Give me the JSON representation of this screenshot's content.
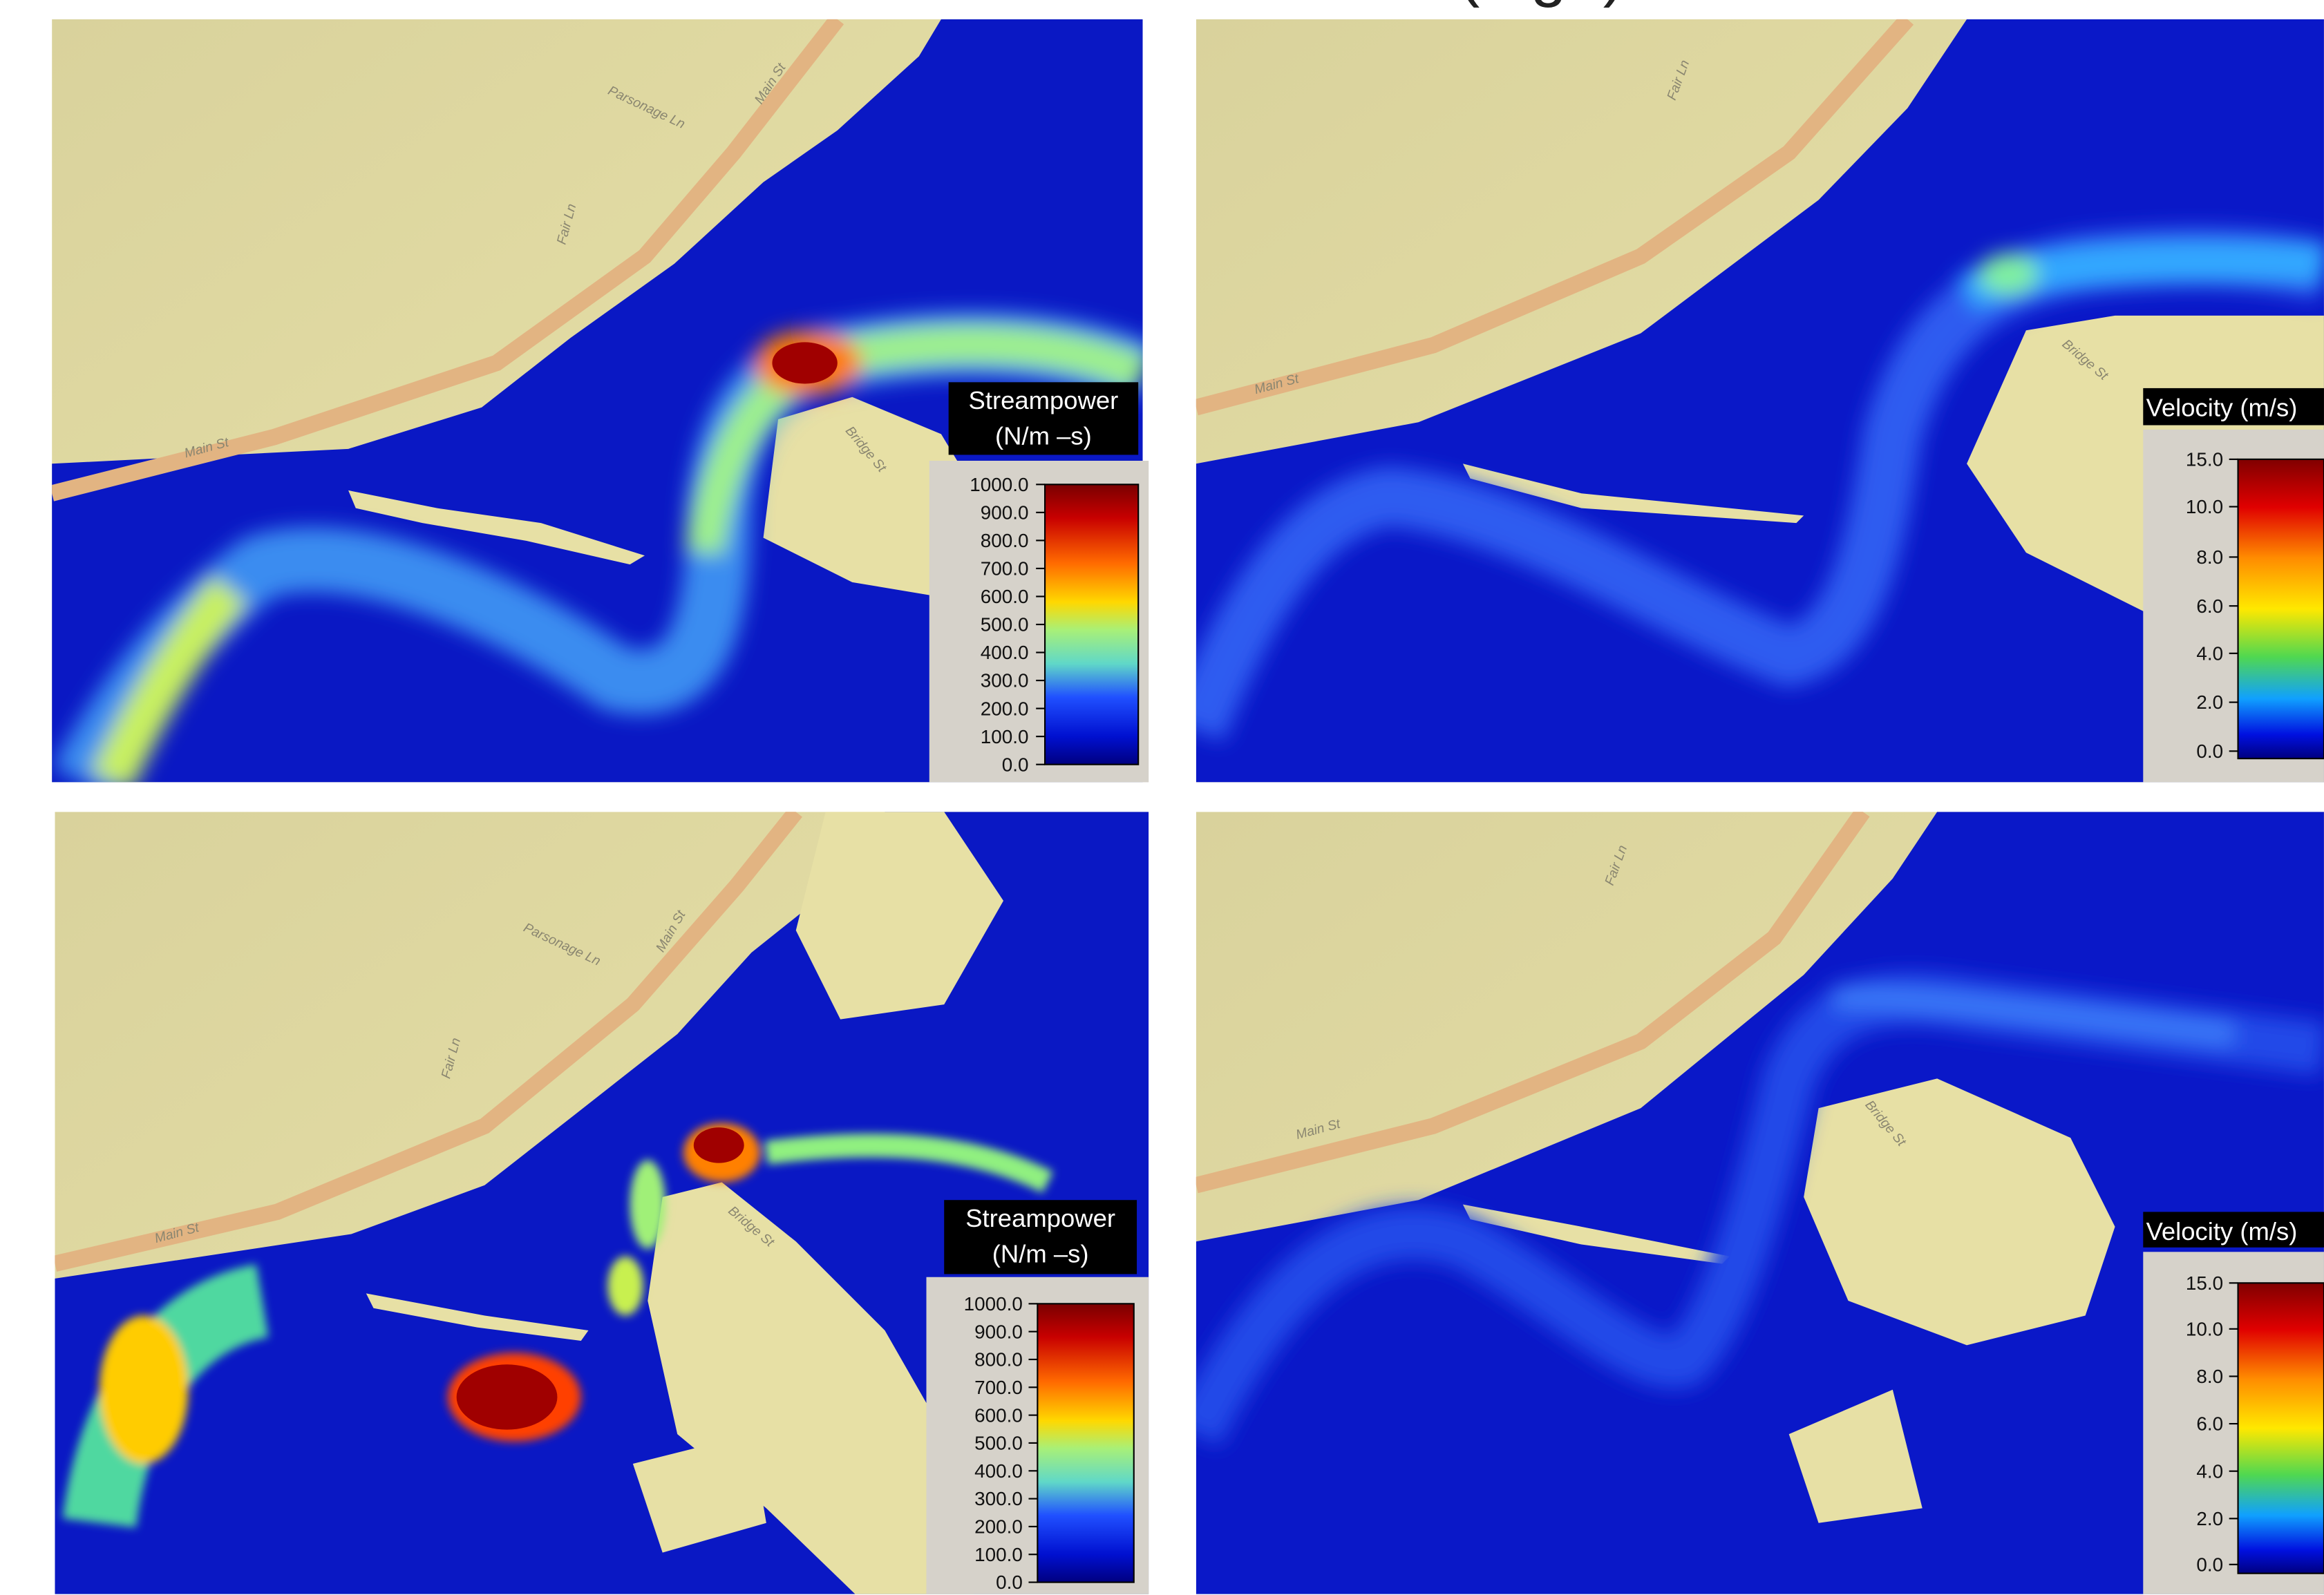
{
  "title": "(high)",
  "panels": [
    {
      "streets": [
        "Parsonage Ln",
        "Main St",
        "Fair Ln",
        "Main St",
        "Bridge St"
      ],
      "legend": {
        "title": "Streampower",
        "unit": "(N/m –s)",
        "ticks": [
          "1000.0",
          "900.0",
          "800.0",
          "700.0",
          "600.0",
          "500.0",
          "400.0",
          "300.0",
          "200.0",
          "100.0",
          "0.0"
        ]
      }
    },
    {
      "streets": [
        "Fair Ln",
        "Main St",
        "Bridge St"
      ],
      "legend": {
        "title": "Velocity (m/s)",
        "ticks": [
          "15.0",
          "10.0",
          "8.0",
          "6.0",
          "4.0",
          "2.0",
          "0.0"
        ]
      }
    },
    {
      "streets": [
        "Parsonage Ln",
        "Main St",
        "Fair Ln",
        "Main St",
        "Bridge St"
      ],
      "legend": {
        "title": "Streampower",
        "unit": "(N/m –s)",
        "ticks": [
          "1000.0",
          "900.0",
          "800.0",
          "700.0",
          "600.0",
          "500.0",
          "400.0",
          "300.0",
          "200.0",
          "100.0",
          "0.0"
        ]
      }
    },
    {
      "streets": [
        "Fair Ln",
        "Main St",
        "Bridge St"
      ],
      "legend": {
        "title": "Velocity (m/s)",
        "ticks": [
          "15.0",
          "10.0",
          "8.0",
          "6.0",
          "4.0",
          "2.0",
          "0.0"
        ]
      }
    }
  ]
}
